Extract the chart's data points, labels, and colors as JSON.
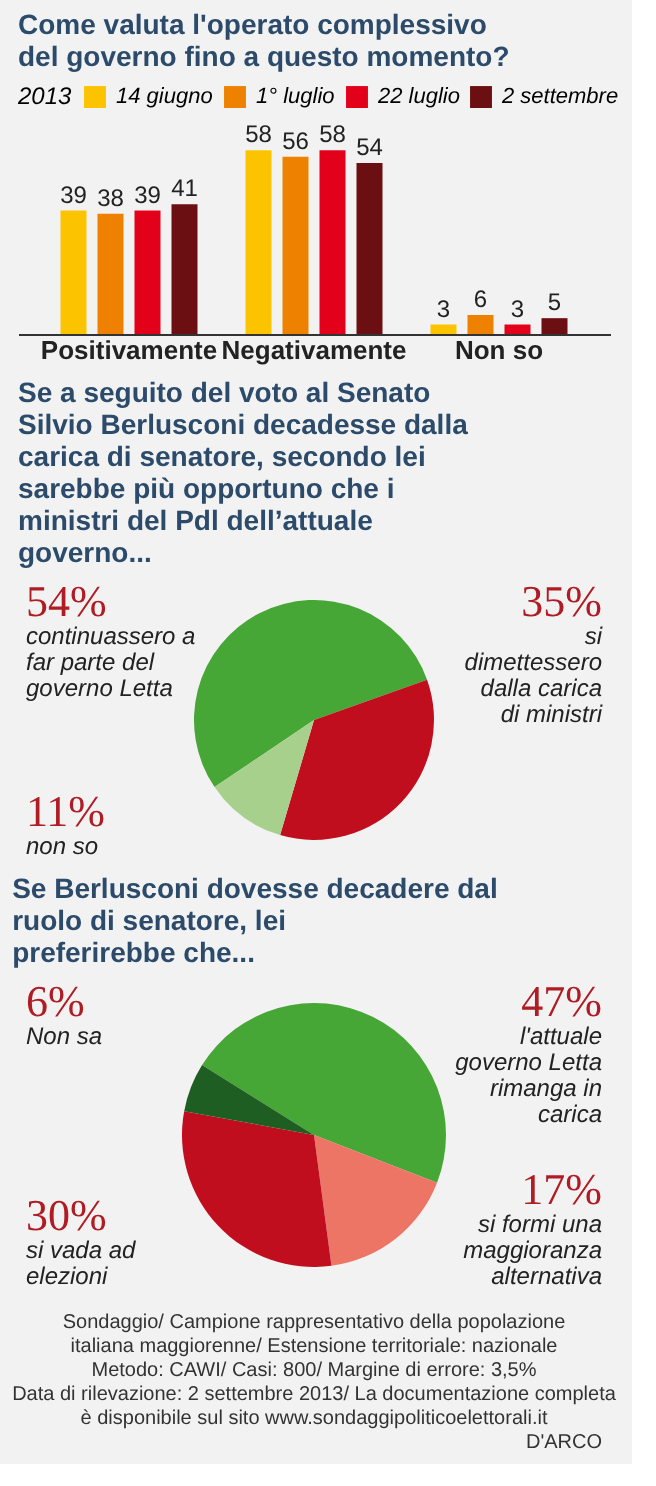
{
  "chart_data": [
    {
      "type": "bar",
      "title": "Come valuta l'operato complessivo del governo fino a questo momento?",
      "legend_title": "2013",
      "categories": [
        "Positivamente",
        "Negativamente",
        "Non so"
      ],
      "series": [
        {
          "name": "14 giugno",
          "color": "#fcc400",
          "values": [
            39,
            58,
            3
          ]
        },
        {
          "name": "1° luglio",
          "color": "#ee8100",
          "values": [
            38,
            56,
            6
          ]
        },
        {
          "name": "22 luglio",
          "color": "#e2001a",
          "values": [
            39,
            58,
            3
          ]
        },
        {
          "name": "2 settembre",
          "color": "#6b0f12",
          "values": [
            41,
            54,
            5
          ]
        }
      ],
      "data_labels": true,
      "legend": "top",
      "grid": false
    },
    {
      "type": "pie",
      "title": "Se a seguito del voto al Senato Silvio Berlusconi decadesse dalla carica di senatore, secondo lei sarebbe più opportuno che i ministri del Pdl dell’attuale governo...",
      "categories": [
        "continuassero a far parte del governo Letta",
        "si dimettessero dalla carica di ministri",
        "non so"
      ],
      "values": [
        54,
        35,
        11
      ],
      "colors": [
        "#46a636",
        "#c10e1f",
        "#a8d08d"
      ],
      "value_labels": [
        "54%",
        "35%",
        "11%"
      ]
    },
    {
      "type": "pie",
      "title": "Se Berlusconi dovesse decadere dal ruolo di senatore, lei preferirebbe che...",
      "categories": [
        "l'attuale governo Letta rimanga in carica",
        "si formi una maggioranza alternativa",
        "si vada ad elezioni",
        "Non sa"
      ],
      "values": [
        47,
        17,
        30,
        6
      ],
      "colors": [
        "#46a636",
        "#ec7565",
        "#c10e1f",
        "#1e5e22"
      ],
      "value_labels": [
        "47%",
        "17%",
        "30%",
        "6%"
      ],
      "annotations": [
        "Sondaggio/ Campione rappresentativo della popolazione",
        "italiana maggiorenne/ Estensione territoriale: nazionale",
        "Metodo: CAWI/ Casi: 800/ Margine di errore: 3,5%",
        "Data di rilevazione: 2 settembre 2013/ La documentazione completa",
        "è disponibile sul sito www.sondaggipoliticoelettorali.it",
        "D'ARCO"
      ]
    }
  ]
}
